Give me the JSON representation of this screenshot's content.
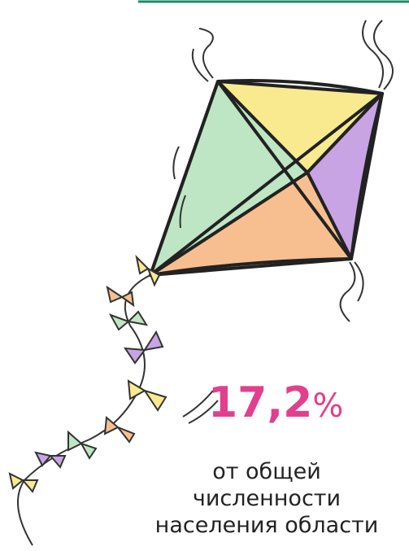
{
  "stat": {
    "number": "17,2",
    "unit": "%"
  },
  "caption": [
    "от общей",
    "численности",
    "населения области"
  ]
}
